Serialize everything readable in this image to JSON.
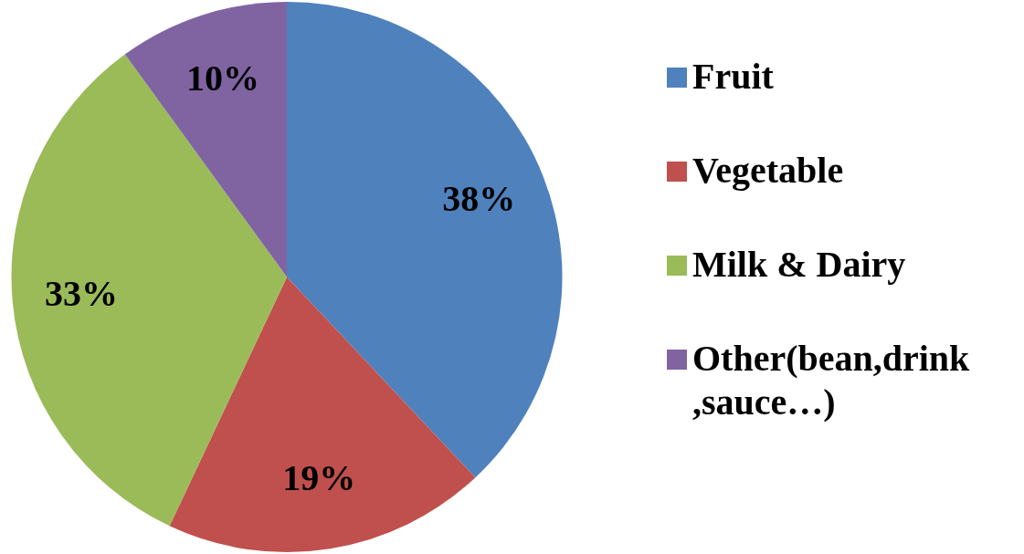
{
  "chart_data": {
    "type": "pie",
    "categories": [
      "Fruit",
      "Vegetable",
      "Milk & Dairy",
      "Other(bean,drink ,sauce…)"
    ],
    "values": [
      38,
      19,
      33,
      10
    ],
    "colors": [
      "#4f81bd",
      "#c0504d",
      "#9bbb59",
      "#8064a2"
    ],
    "value_labels": [
      "38%",
      "19%",
      "33%",
      "10%"
    ],
    "legend": "right"
  }
}
